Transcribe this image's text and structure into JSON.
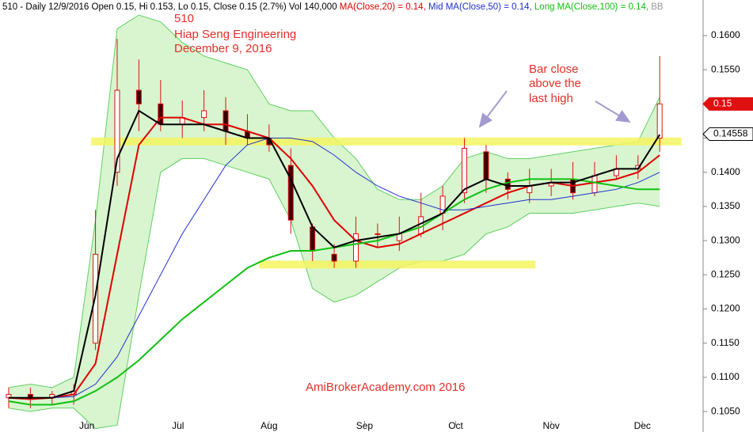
{
  "chart_data": {
    "type": "candlestick",
    "header": "510 - Daily 12/9/2016 Open 0.15, Hi 0.153, Lo 0.15, Close 0.15 (2.7%) Vol 140,000",
    "annotations": [
      "510",
      "Hiap Seng Engineering",
      "December 9, 2016",
      "Bar close",
      "above the",
      "last high",
      "AmiBrokerAcademy.com  2016"
    ],
    "x": [
      2,
      7,
      12,
      17,
      22,
      27,
      32,
      37,
      42,
      47,
      52,
      57,
      62,
      67,
      72,
      77,
      82,
      87,
      92,
      97,
      102,
      107,
      112,
      117,
      122,
      127,
      132,
      137,
      142,
      147,
      152
    ],
    "ohlc": {
      "open": [
        0.107,
        0.1075,
        0.107,
        0.1075,
        0.115,
        0.14,
        0.152,
        0.15,
        0.147,
        0.148,
        0.149,
        0.146,
        0.145,
        0.141,
        0.132,
        0.128,
        0.127,
        0.131,
        0.13,
        0.131,
        0.134,
        0.137,
        0.143,
        0.139,
        0.137,
        0.138,
        0.139,
        0.137,
        0.1395,
        0.1405,
        0.145
      ],
      "high": [
        0.1085,
        0.1085,
        0.108,
        0.109,
        0.1345,
        0.1595,
        0.1565,
        0.1535,
        0.1505,
        0.152,
        0.151,
        0.1485,
        0.147,
        0.1435,
        0.1325,
        0.1295,
        0.1335,
        0.1325,
        0.1335,
        0.137,
        0.138,
        0.145,
        0.144,
        0.14,
        0.1405,
        0.1405,
        0.1415,
        0.1415,
        0.1425,
        0.1425,
        0.157
      ],
      "low": [
        0.1055,
        0.1055,
        0.106,
        0.106,
        0.114,
        0.138,
        0.146,
        0.146,
        0.145,
        0.146,
        0.144,
        0.144,
        0.143,
        0.131,
        0.127,
        0.126,
        0.126,
        0.129,
        0.1285,
        0.1305,
        0.1315,
        0.1355,
        0.137,
        0.136,
        0.1355,
        0.1365,
        0.136,
        0.1365,
        0.139,
        0.139,
        0.143
      ],
      "close": [
        0.1075,
        0.107,
        0.1075,
        0.108,
        0.128,
        0.152,
        0.15,
        0.147,
        0.148,
        0.149,
        0.146,
        0.145,
        0.144,
        0.133,
        0.1285,
        0.127,
        0.131,
        0.131,
        0.131,
        0.1335,
        0.1365,
        0.1435,
        0.139,
        0.1375,
        0.138,
        0.1385,
        0.137,
        0.1395,
        0.1405,
        0.141,
        0.15
      ],
      "up_color": "#e01010",
      "down_color": "#3a0000"
    },
    "bollinger": {
      "name": "BB",
      "color": "#5fd05f",
      "fill": "#d8f5d0",
      "upper": [
        0.1085,
        0.109,
        0.1085,
        0.11,
        0.133,
        0.161,
        0.163,
        0.162,
        0.159,
        0.157,
        0.156,
        0.155,
        0.15,
        0.149,
        0.149,
        0.145,
        0.142,
        0.1375,
        0.136,
        0.136,
        0.138,
        0.142,
        0.143,
        0.142,
        0.142,
        0.1425,
        0.143,
        0.1435,
        0.144,
        0.1445,
        0.151
      ],
      "lower": [
        0.1055,
        0.105,
        0.1055,
        0.1055,
        0.1025,
        0.103,
        0.122,
        0.14,
        0.142,
        0.142,
        0.141,
        0.14,
        0.139,
        0.133,
        0.123,
        0.121,
        0.122,
        0.124,
        0.126,
        0.127,
        0.127,
        0.128,
        0.131,
        0.132,
        0.134,
        0.134,
        0.134,
        0.1345,
        0.135,
        0.1355,
        0.135
      ]
    },
    "series": [
      {
        "name": "MA(Close,20) = 0.14,",
        "color": "#e00000",
        "width": 2,
        "values": [
          0.107,
          0.1068,
          0.107,
          0.1075,
          0.112,
          0.128,
          0.144,
          0.148,
          0.148,
          0.147,
          0.147,
          0.146,
          0.145,
          0.142,
          0.138,
          0.133,
          0.13,
          0.129,
          0.1295,
          0.131,
          0.1325,
          0.134,
          0.1355,
          0.137,
          0.138,
          0.1385,
          0.138,
          0.1385,
          0.139,
          0.14,
          0.1425
        ]
      },
      {
        "name": "Mid MA(Close,50) = 0.14,",
        "color": "#2030d0",
        "width": 1,
        "values": [
          0.107,
          0.107,
          0.107,
          0.1072,
          0.109,
          0.113,
          0.119,
          0.125,
          0.131,
          0.136,
          0.141,
          0.144,
          0.145,
          0.145,
          0.1445,
          0.1425,
          0.14,
          0.138,
          0.1365,
          0.1355,
          0.1345,
          0.1345,
          0.135,
          0.1355,
          0.136,
          0.136,
          0.1365,
          0.137,
          0.1375,
          0.1385,
          0.14
        ]
      },
      {
        "name": "Long MA(Close,100) = 0.14,",
        "color": "#10c010",
        "width": 2,
        "values": [
          0.1065,
          0.106,
          0.106,
          0.1065,
          0.108,
          0.11,
          0.1125,
          0.1155,
          0.1185,
          0.121,
          0.1235,
          0.126,
          0.1275,
          0.1285,
          0.1285,
          0.129,
          0.1295,
          0.13,
          0.131,
          0.132,
          0.134,
          0.136,
          0.1375,
          0.1385,
          0.139,
          0.139,
          0.139,
          0.1385,
          0.138,
          0.1375,
          0.1375
        ]
      },
      {
        "color": "#000000",
        "width": 2,
        "values": [
          0.107,
          0.107,
          0.107,
          0.108,
          0.122,
          0.142,
          0.149,
          0.147,
          0.147,
          0.147,
          0.146,
          0.145,
          0.145,
          0.139,
          0.132,
          0.129,
          0.13,
          0.1305,
          0.131,
          0.1325,
          0.134,
          0.1375,
          0.139,
          0.138,
          0.138,
          0.1385,
          0.1385,
          0.1395,
          0.1405,
          0.1405,
          0.1455
        ]
      }
    ],
    "zones": [
      {
        "y": 0.1445,
        "x": [
          21,
          157
        ]
      },
      {
        "y": 0.1265,
        "x": [
          59.7,
          123.4
        ]
      }
    ],
    "zone_color": "#f5f560",
    "price_markers": [
      {
        "value": 0.15,
        "label": "0.15",
        "color": "#e01010"
      },
      {
        "value": 0.14558,
        "label": "0.14558",
        "color": "#000000"
      }
    ],
    "xlim": [
      0,
      162
    ],
    "xticks": [
      {
        "value": 20,
        "label": "Jun"
      },
      {
        "value": 41,
        "label": "Jul"
      },
      {
        "value": 62,
        "label": "Aug"
      },
      {
        "value": 84,
        "label": "Sep"
      },
      {
        "value": 105,
        "label": "Oct"
      },
      {
        "value": 127,
        "label": "Nov"
      },
      {
        "value": 148,
        "label": "Dec"
      }
    ],
    "ylim": [
      0.102,
      0.1652
    ],
    "yticks": [
      {
        "value": 0.105,
        "label": "0.1050"
      },
      {
        "value": 0.11,
        "label": "0.1100"
      },
      {
        "value": 0.115,
        "label": "0.1150"
      },
      {
        "value": 0.12,
        "label": "0.1200"
      },
      {
        "value": 0.125,
        "label": "0.1250"
      },
      {
        "value": 0.13,
        "label": "0.1300"
      },
      {
        "value": 0.135,
        "label": "0.1350"
      },
      {
        "value": 0.14,
        "label": "0.1400"
      },
      {
        "value": 0.145,
        "label": "0.1450"
      },
      {
        "value": 0.15,
        "label": "0.1500"
      },
      {
        "value": 0.155,
        "label": "0.1550"
      },
      {
        "value": 0.16,
        "label": "0.1600"
      }
    ]
  }
}
